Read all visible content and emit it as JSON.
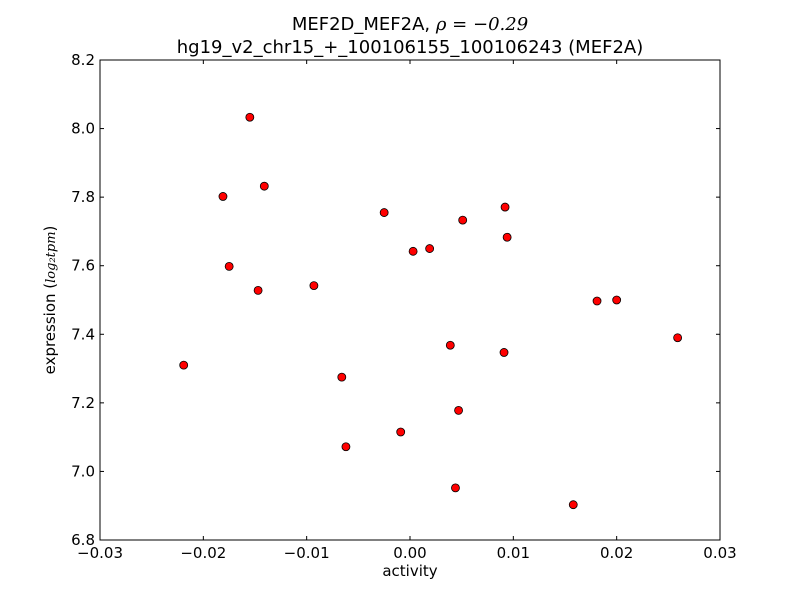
{
  "chart_data": {
    "type": "scatter",
    "title_line1_prefix": "MEF2D_MEF2A, ",
    "title_line1_rho": "ρ = −0.29",
    "title_line2": "hg19_v2_chr15_+_100106155_100106243 (MEF2A)",
    "xlabel": "activity",
    "ylabel_prefix": "expression (",
    "ylabel_math": "log₂tpm",
    "ylabel_suffix": ")",
    "xlim": [
      -0.03,
      0.03
    ],
    "ylim": [
      6.8,
      8.2
    ],
    "xticks": [
      -0.03,
      -0.02,
      -0.01,
      0.0,
      0.01,
      0.02,
      0.03
    ],
    "xtick_labels": [
      "−0.03",
      "−0.02",
      "−0.01",
      "0.00",
      "0.01",
      "0.02",
      "0.03"
    ],
    "yticks": [
      6.8,
      7.0,
      7.2,
      7.4,
      7.6,
      7.8,
      8.0,
      8.2
    ],
    "ytick_labels": [
      "6.8",
      "7.0",
      "7.2",
      "7.4",
      "7.6",
      "7.8",
      "8.0",
      "8.2"
    ],
    "grid": false,
    "marker_color": "#ff0000",
    "points": [
      {
        "x": -0.0155,
        "y": 8.033
      },
      {
        "x": -0.0141,
        "y": 7.832
      },
      {
        "x": -0.0181,
        "y": 7.802
      },
      {
        "x": -0.0175,
        "y": 7.598
      },
      {
        "x": -0.0147,
        "y": 7.528
      },
      {
        "x": -0.0219,
        "y": 7.31
      },
      {
        "x": -0.0093,
        "y": 7.542
      },
      {
        "x": -0.0066,
        "y": 7.275
      },
      {
        "x": -0.0062,
        "y": 7.072
      },
      {
        "x": -0.0025,
        "y": 7.755
      },
      {
        "x": 0.0003,
        "y": 7.642
      },
      {
        "x": 0.0019,
        "y": 7.65
      },
      {
        "x": -0.0009,
        "y": 7.115
      },
      {
        "x": 0.0051,
        "y": 7.733
      },
      {
        "x": 0.0092,
        "y": 7.771
      },
      {
        "x": 0.0094,
        "y": 7.683
      },
      {
        "x": 0.0039,
        "y": 7.368
      },
      {
        "x": 0.0047,
        "y": 7.178
      },
      {
        "x": 0.0044,
        "y": 6.952
      },
      {
        "x": 0.0091,
        "y": 7.347
      },
      {
        "x": 0.0181,
        "y": 7.497
      },
      {
        "x": 0.02,
        "y": 7.5
      },
      {
        "x": 0.0259,
        "y": 7.39
      },
      {
        "x": 0.0158,
        "y": 6.903
      }
    ]
  }
}
